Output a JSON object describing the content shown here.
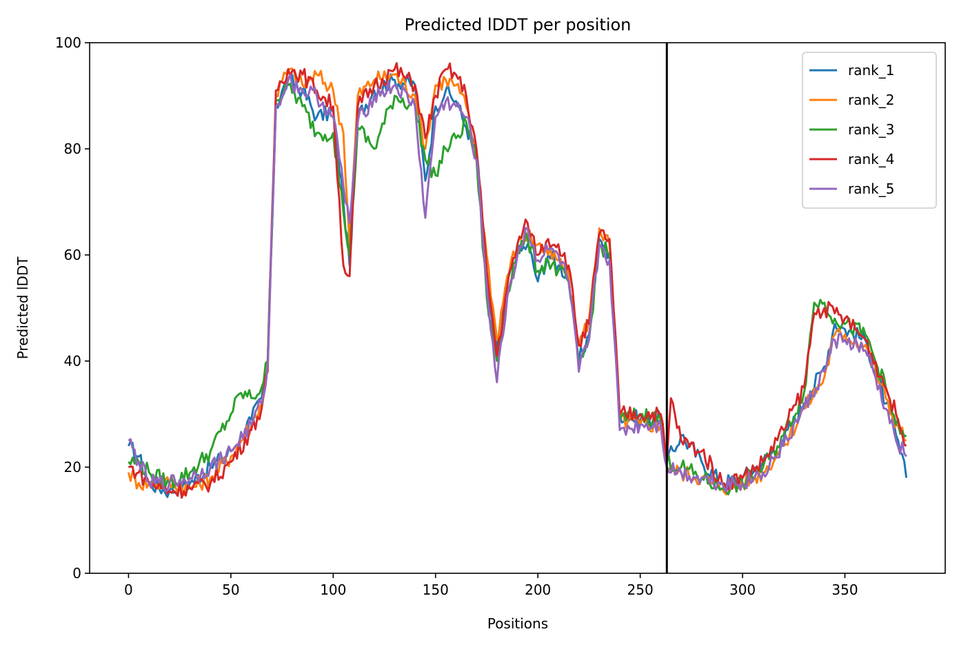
{
  "chart_data": {
    "type": "line",
    "title": "Predicted lDDT per position",
    "xlabel": "Positions",
    "ylabel": "Predicted lDDT",
    "xlim": [
      -19,
      399
    ],
    "ylim": [
      0,
      100
    ],
    "xticks": [
      0,
      50,
      100,
      150,
      200,
      250,
      300,
      350
    ],
    "yticks": [
      0,
      20,
      40,
      60,
      80,
      100
    ],
    "grid": false,
    "legend_position": "top-right",
    "vertical_line_x": 263,
    "series": [
      {
        "name": "rank_1",
        "color": "#1f77b4",
        "points": [
          [
            0,
            24
          ],
          [
            5,
            22
          ],
          [
            10,
            17
          ],
          [
            20,
            15.5
          ],
          [
            30,
            17
          ],
          [
            40,
            20
          ],
          [
            50,
            23
          ],
          [
            60,
            29
          ],
          [
            65,
            33
          ],
          [
            68,
            40
          ],
          [
            72,
            88
          ],
          [
            78,
            93
          ],
          [
            85,
            91
          ],
          [
            92,
            86
          ],
          [
            100,
            87
          ],
          [
            105,
            70
          ],
          [
            108,
            58
          ],
          [
            112,
            86
          ],
          [
            120,
            91
          ],
          [
            130,
            93
          ],
          [
            140,
            92
          ],
          [
            145,
            74
          ],
          [
            150,
            88
          ],
          [
            155,
            91
          ],
          [
            160,
            89
          ],
          [
            165,
            84
          ],
          [
            170,
            80
          ],
          [
            175,
            55
          ],
          [
            180,
            42
          ],
          [
            185,
            55
          ],
          [
            190,
            60
          ],
          [
            195,
            62
          ],
          [
            200,
            55
          ],
          [
            205,
            60
          ],
          [
            210,
            58
          ],
          [
            215,
            56
          ],
          [
            220,
            40
          ],
          [
            225,
            45
          ],
          [
            230,
            63
          ],
          [
            235,
            60
          ],
          [
            240,
            30
          ],
          [
            250,
            29
          ],
          [
            260,
            29
          ],
          [
            263,
            21
          ],
          [
            270,
            26
          ],
          [
            280,
            21
          ],
          [
            290,
            17
          ],
          [
            300,
            18
          ],
          [
            310,
            21
          ],
          [
            320,
            25
          ],
          [
            330,
            32
          ],
          [
            340,
            39
          ],
          [
            345,
            47
          ],
          [
            350,
            46
          ],
          [
            360,
            44
          ],
          [
            370,
            32
          ],
          [
            375,
            26
          ],
          [
            380,
            18
          ]
        ]
      },
      {
        "name": "rank_2",
        "color": "#ff7f0e",
        "points": [
          [
            0,
            19
          ],
          [
            5,
            17
          ],
          [
            10,
            17
          ],
          [
            20,
            17
          ],
          [
            30,
            16
          ],
          [
            40,
            18
          ],
          [
            50,
            22
          ],
          [
            60,
            28
          ],
          [
            65,
            32
          ],
          [
            68,
            40
          ],
          [
            72,
            90
          ],
          [
            78,
            95
          ],
          [
            85,
            92
          ],
          [
            92,
            94
          ],
          [
            100,
            91
          ],
          [
            105,
            83
          ],
          [
            108,
            62
          ],
          [
            112,
            90
          ],
          [
            120,
            93
          ],
          [
            130,
            94
          ],
          [
            140,
            90
          ],
          [
            145,
            80
          ],
          [
            150,
            92
          ],
          [
            155,
            93
          ],
          [
            160,
            92
          ],
          [
            165,
            88
          ],
          [
            170,
            78
          ],
          [
            175,
            60
          ],
          [
            180,
            44
          ],
          [
            185,
            56
          ],
          [
            190,
            62
          ],
          [
            195,
            64
          ],
          [
            200,
            62
          ],
          [
            205,
            60
          ],
          [
            210,
            59
          ],
          [
            215,
            56
          ],
          [
            220,
            43
          ],
          [
            225,
            48
          ],
          [
            230,
            65
          ],
          [
            235,
            62
          ],
          [
            240,
            29
          ],
          [
            250,
            28
          ],
          [
            260,
            28
          ],
          [
            263,
            20
          ],
          [
            270,
            19
          ],
          [
            280,
            18
          ],
          [
            290,
            16
          ],
          [
            300,
            17
          ],
          [
            310,
            19
          ],
          [
            320,
            24
          ],
          [
            330,
            31
          ],
          [
            340,
            37
          ],
          [
            345,
            45
          ],
          [
            350,
            45
          ],
          [
            360,
            43
          ],
          [
            370,
            33
          ],
          [
            375,
            28
          ],
          [
            380,
            25
          ]
        ]
      },
      {
        "name": "rank_3",
        "color": "#2ca02c",
        "points": [
          [
            0,
            21
          ],
          [
            5,
            21
          ],
          [
            10,
            19
          ],
          [
            20,
            17
          ],
          [
            30,
            19
          ],
          [
            40,
            23
          ],
          [
            50,
            30
          ],
          [
            55,
            34
          ],
          [
            60,
            33
          ],
          [
            65,
            35
          ],
          [
            68,
            40
          ],
          [
            72,
            89
          ],
          [
            78,
            92
          ],
          [
            85,
            88
          ],
          [
            92,
            83
          ],
          [
            100,
            83
          ],
          [
            105,
            68
          ],
          [
            108,
            60
          ],
          [
            112,
            84
          ],
          [
            120,
            80
          ],
          [
            130,
            90
          ],
          [
            140,
            88
          ],
          [
            145,
            78
          ],
          [
            150,
            75
          ],
          [
            155,
            80
          ],
          [
            160,
            82
          ],
          [
            165,
            85
          ],
          [
            170,
            78
          ],
          [
            175,
            52
          ],
          [
            180,
            40
          ],
          [
            185,
            53
          ],
          [
            190,
            61
          ],
          [
            195,
            63
          ],
          [
            200,
            57
          ],
          [
            205,
            59
          ],
          [
            210,
            57
          ],
          [
            215,
            55
          ],
          [
            220,
            39
          ],
          [
            225,
            44
          ],
          [
            230,
            62
          ],
          [
            235,
            60
          ],
          [
            240,
            29
          ],
          [
            250,
            30
          ],
          [
            260,
            29
          ],
          [
            263,
            21
          ],
          [
            270,
            20
          ],
          [
            280,
            18
          ],
          [
            290,
            16
          ],
          [
            300,
            17
          ],
          [
            310,
            20
          ],
          [
            320,
            26
          ],
          [
            330,
            34
          ],
          [
            335,
            51
          ],
          [
            340,
            51
          ],
          [
            345,
            48
          ],
          [
            350,
            47
          ],
          [
            360,
            45
          ],
          [
            370,
            35
          ],
          [
            375,
            28
          ],
          [
            380,
            26
          ]
        ]
      },
      {
        "name": "rank_4",
        "color": "#d62728",
        "points": [
          [
            0,
            20
          ],
          [
            5,
            19
          ],
          [
            10,
            17
          ],
          [
            20,
            15.5
          ],
          [
            30,
            16
          ],
          [
            40,
            17
          ],
          [
            50,
            21
          ],
          [
            60,
            27
          ],
          [
            65,
            31
          ],
          [
            68,
            38
          ],
          [
            72,
            91
          ],
          [
            78,
            95
          ],
          [
            85,
            94
          ],
          [
            92,
            91
          ],
          [
            100,
            88
          ],
          [
            105,
            58
          ],
          [
            108,
            56
          ],
          [
            112,
            88
          ],
          [
            120,
            92
          ],
          [
            130,
            95
          ],
          [
            140,
            92
          ],
          [
            145,
            82
          ],
          [
            150,
            90
          ],
          [
            155,
            95
          ],
          [
            160,
            94
          ],
          [
            165,
            90
          ],
          [
            170,
            80
          ],
          [
            175,
            57
          ],
          [
            180,
            41
          ],
          [
            185,
            54
          ],
          [
            190,
            62
          ],
          [
            195,
            66
          ],
          [
            200,
            60
          ],
          [
            205,
            63
          ],
          [
            210,
            62
          ],
          [
            215,
            58
          ],
          [
            220,
            43
          ],
          [
            225,
            47
          ],
          [
            230,
            64
          ],
          [
            235,
            63
          ],
          [
            240,
            30
          ],
          [
            250,
            30
          ],
          [
            260,
            30
          ],
          [
            263,
            21
          ],
          [
            265,
            33
          ],
          [
            270,
            25
          ],
          [
            280,
            23
          ],
          [
            290,
            17
          ],
          [
            300,
            18
          ],
          [
            310,
            21
          ],
          [
            320,
            27
          ],
          [
            330,
            35
          ],
          [
            335,
            49
          ],
          [
            340,
            50
          ],
          [
            345,
            49
          ],
          [
            350,
            48
          ],
          [
            360,
            44
          ],
          [
            370,
            35
          ],
          [
            375,
            30
          ],
          [
            380,
            24
          ]
        ]
      },
      {
        "name": "rank_5",
        "color": "#9467bd",
        "points": [
          [
            0,
            25
          ],
          [
            5,
            21
          ],
          [
            10,
            17
          ],
          [
            20,
            17
          ],
          [
            30,
            18
          ],
          [
            40,
            20
          ],
          [
            50,
            23
          ],
          [
            60,
            28
          ],
          [
            65,
            32
          ],
          [
            68,
            39
          ],
          [
            72,
            88
          ],
          [
            78,
            93
          ],
          [
            85,
            91
          ],
          [
            92,
            90
          ],
          [
            100,
            86
          ],
          [
            105,
            73
          ],
          [
            108,
            66
          ],
          [
            112,
            85
          ],
          [
            120,
            90
          ],
          [
            130,
            92
          ],
          [
            140,
            88
          ],
          [
            145,
            67
          ],
          [
            150,
            86
          ],
          [
            155,
            89
          ],
          [
            160,
            88
          ],
          [
            165,
            86
          ],
          [
            170,
            78
          ],
          [
            175,
            54
          ],
          [
            180,
            36
          ],
          [
            185,
            52
          ],
          [
            190,
            60
          ],
          [
            195,
            65
          ],
          [
            200,
            59
          ],
          [
            205,
            61
          ],
          [
            210,
            60
          ],
          [
            215,
            55
          ],
          [
            220,
            38
          ],
          [
            225,
            44
          ],
          [
            230,
            62
          ],
          [
            235,
            59
          ],
          [
            240,
            27
          ],
          [
            250,
            28
          ],
          [
            260,
            28
          ],
          [
            263,
            20
          ],
          [
            270,
            19
          ],
          [
            280,
            18
          ],
          [
            290,
            17
          ],
          [
            300,
            17
          ],
          [
            310,
            19
          ],
          [
            320,
            24
          ],
          [
            330,
            31
          ],
          [
            340,
            38
          ],
          [
            345,
            44
          ],
          [
            350,
            44
          ],
          [
            360,
            42
          ],
          [
            370,
            31
          ],
          [
            375,
            25
          ],
          [
            380,
            22
          ]
        ]
      }
    ]
  }
}
